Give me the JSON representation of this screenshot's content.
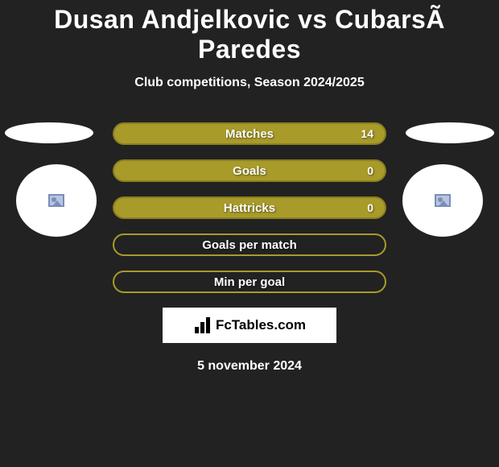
{
  "title": "Dusan Andjelkovic vs CubarsÃ Paredes",
  "subtitle": "Club competitions, Season 2024/2025",
  "stats": [
    {
      "label": "Matches",
      "value": "14",
      "filled": true
    },
    {
      "label": "Goals",
      "value": "0",
      "filled": true
    },
    {
      "label": "Hattricks",
      "value": "0",
      "filled": true
    },
    {
      "label": "Goals per match",
      "value": "",
      "filled": false
    },
    {
      "label": "Min per goal",
      "value": "",
      "filled": false
    }
  ],
  "brand": "FcTables.com",
  "date": "5 november 2024",
  "colors": {
    "background": "#222222",
    "bar_fill": "#a89b2a",
    "bar_border": "#8a7f20",
    "text": "#ffffff"
  }
}
